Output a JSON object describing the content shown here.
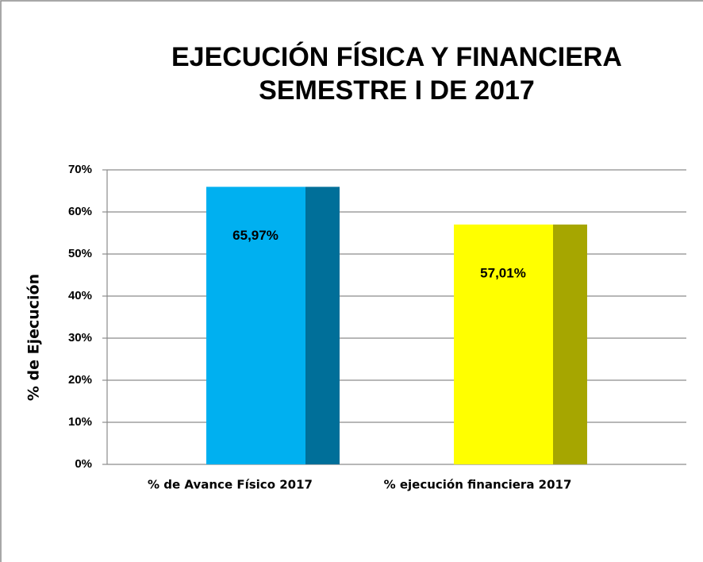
{
  "chart_data": {
    "type": "bar",
    "title": [
      "EJECUCIÓN FÍSICA Y FINANCIERA",
      "SEMESTRE I DE 2017"
    ],
    "y_label": "% de Ejecución",
    "categories": [
      "% de Avance Físico 2017",
      "% ejecución financiera 2017"
    ],
    "values": [
      65.97,
      57.01
    ],
    "value_labels": [
      "65,97%",
      "57,01%"
    ],
    "colors": [
      "#00b0f0",
      "#ffff00"
    ],
    "side_colors": [
      "#006f99",
      "#a6a600"
    ],
    "ylim": [
      0,
      70
    ],
    "yticks": [
      {
        "value": 0,
        "label": "0%"
      },
      {
        "value": 10,
        "label": "10%"
      },
      {
        "value": 20,
        "label": "20%"
      },
      {
        "value": 30,
        "label": "30%"
      },
      {
        "value": 40,
        "label": "40%"
      },
      {
        "value": 50,
        "label": "50%"
      },
      {
        "value": 60,
        "label": "60%"
      },
      {
        "value": 70,
        "label": "70%"
      }
    ],
    "grid": true
  }
}
